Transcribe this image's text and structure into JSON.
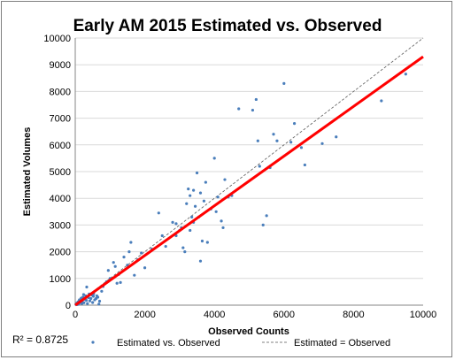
{
  "chart_data": {
    "type": "scatter",
    "title": "Early AM 2015 Estimated vs. Observed",
    "xlabel": "Observed Counts",
    "ylabel": "Estimated Volumes",
    "xlim": [
      0,
      10000
    ],
    "ylim": [
      0,
      10000
    ],
    "x_ticks": [
      "0",
      "2000",
      "4000",
      "6000",
      "8000",
      "10000"
    ],
    "y_ticks": [
      "0",
      "1000",
      "2000",
      "3000",
      "4000",
      "5000",
      "6000",
      "7000",
      "8000",
      "9000",
      "10000"
    ],
    "grid": "horizontal",
    "legend_position": "bottom",
    "r_squared_text": "R² = 0.8725",
    "colors": {
      "points": "#4a7ebb",
      "trend": "#ff0000",
      "reference": "#595959",
      "grid": "#d9d9d9"
    },
    "series": [
      {
        "name": "Estimated vs. Observed",
        "kind": "scatter",
        "points": [
          [
            20,
            30
          ],
          [
            50,
            80
          ],
          [
            80,
            120
          ],
          [
            100,
            50
          ],
          [
            120,
            200
          ],
          [
            150,
            100
          ],
          [
            170,
            260
          ],
          [
            200,
            150
          ],
          [
            220,
            300
          ],
          [
            250,
            90
          ],
          [
            280,
            220
          ],
          [
            300,
            350
          ],
          [
            320,
            180
          ],
          [
            350,
            60
          ],
          [
            380,
            280
          ],
          [
            400,
            420
          ],
          [
            420,
            160
          ],
          [
            450,
            250
          ],
          [
            480,
            380
          ],
          [
            500,
            100
          ],
          [
            520,
            330
          ],
          [
            560,
            200
          ],
          [
            600,
            250
          ],
          [
            620,
            350
          ],
          [
            650,
            300
          ],
          [
            700,
            150
          ],
          [
            60,
            20
          ],
          [
            110,
            160
          ],
          [
            190,
            60
          ],
          [
            240,
            400
          ],
          [
            330,
            680
          ],
          [
            530,
            430
          ],
          [
            680,
            40
          ],
          [
            760,
            520
          ],
          [
            800,
            700
          ],
          [
            900,
            880
          ],
          [
            950,
            1300
          ],
          [
            1000,
            1000
          ],
          [
            1100,
            1600
          ],
          [
            1150,
            1450
          ],
          [
            1200,
            820
          ],
          [
            1250,
            1150
          ],
          [
            1300,
            850
          ],
          [
            1400,
            1800
          ],
          [
            1500,
            1500
          ],
          [
            1550,
            2000
          ],
          [
            1600,
            2350
          ],
          [
            1700,
            1120
          ],
          [
            1800,
            1700
          ],
          [
            1900,
            1950
          ],
          [
            2000,
            1400
          ],
          [
            2200,
            2100
          ],
          [
            2400,
            3450
          ],
          [
            2500,
            2600
          ],
          [
            2600,
            2200
          ],
          [
            2800,
            3100
          ],
          [
            2900,
            2600
          ],
          [
            3000,
            2800
          ],
          [
            3050,
            2900
          ],
          [
            3100,
            2150
          ],
          [
            3150,
            2000
          ],
          [
            3200,
            3800
          ],
          [
            3250,
            4350
          ],
          [
            3300,
            2800
          ],
          [
            3400,
            3100
          ],
          [
            3350,
            3300
          ],
          [
            3400,
            4300
          ],
          [
            3450,
            3700
          ],
          [
            3500,
            4950
          ],
          [
            3550,
            3300
          ],
          [
            3600,
            4200
          ],
          [
            3650,
            2400
          ],
          [
            3700,
            3900
          ],
          [
            3750,
            4600
          ],
          [
            3800,
            2350
          ],
          [
            3900,
            3600
          ],
          [
            4000,
            5500
          ],
          [
            4050,
            3500
          ],
          [
            4100,
            4050
          ],
          [
            4200,
            3150
          ],
          [
            4300,
            4700
          ],
          [
            4400,
            4050
          ],
          [
            4500,
            4100
          ],
          [
            4700,
            7350
          ],
          [
            5100,
            7300
          ],
          [
            5200,
            7700
          ],
          [
            5250,
            6150
          ],
          [
            5300,
            5200
          ],
          [
            5400,
            3000
          ],
          [
            5500,
            3350
          ],
          [
            5600,
            5150
          ],
          [
            5700,
            6400
          ],
          [
            5800,
            6150
          ],
          [
            6000,
            8300
          ],
          [
            6200,
            6100
          ],
          [
            6300,
            6800
          ],
          [
            6500,
            5900
          ],
          [
            6600,
            5250
          ],
          [
            7100,
            6050
          ],
          [
            7500,
            6300
          ],
          [
            8800,
            7650
          ],
          [
            9500,
            8650
          ],
          [
            3300,
            4100
          ],
          [
            2900,
            3050
          ],
          [
            3600,
            1650
          ],
          [
            4250,
            2900
          ]
        ]
      },
      {
        "name": "Estimated = Observed",
        "kind": "reference-line",
        "points": [
          [
            0,
            0
          ],
          [
            10000,
            10000
          ]
        ]
      },
      {
        "kind": "trendline",
        "points": [
          [
            0,
            0
          ],
          [
            10000,
            9300
          ]
        ]
      }
    ]
  }
}
